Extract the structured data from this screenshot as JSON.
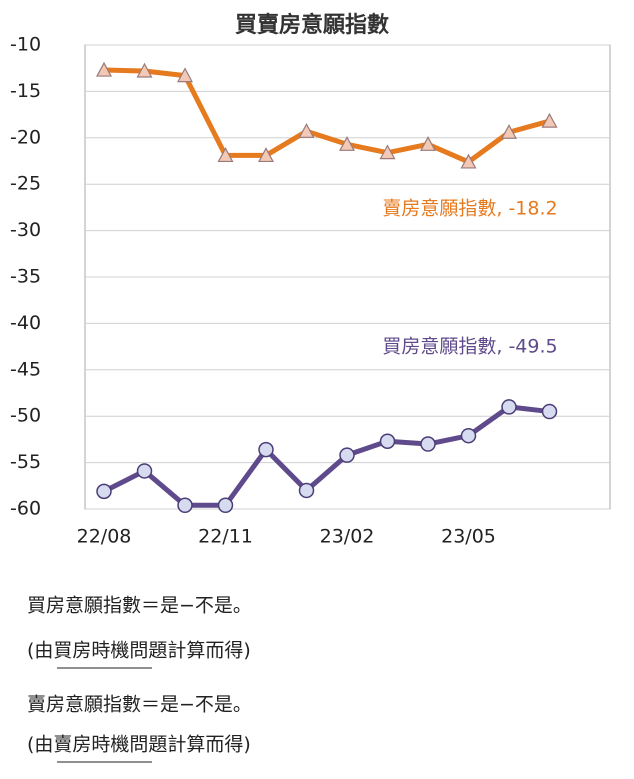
{
  "chart_data": {
    "type": "line",
    "title": "買賣房意願指數",
    "categories": [
      "22/08",
      null,
      null,
      "22/11",
      null,
      null,
      "23/02",
      null,
      null,
      "23/05",
      null,
      null
    ],
    "series": [
      {
        "name": "賣房意願指數",
        "color": "#e57a1f",
        "marker": "triangle",
        "values": [
          -12.7,
          -12.8,
          -13.3,
          -21.9,
          -21.9,
          -19.3,
          -20.7,
          -21.6,
          -20.7,
          -22.6,
          -19.4,
          -18.2
        ]
      },
      {
        "name": "買房意願指數",
        "color": "#5f4b8b",
        "marker": "circle",
        "values": [
          -58.1,
          -55.9,
          -59.6,
          -59.6,
          -53.6,
          -58.0,
          -54.2,
          -52.7,
          -53.0,
          -52.1,
          -49.0,
          -49.5
        ]
      }
    ],
    "annotations": [
      "賣房意願指數, -18.2",
      "買房意願指數, -49.5"
    ],
    "ylim": [
      -60,
      -10
    ],
    "yticks": [
      -60,
      -55,
      -50,
      -45,
      -40,
      -35,
      -30,
      -25,
      -20,
      -15,
      -10
    ],
    "grid": true
  },
  "notes": [
    {
      "formula": "買房意願指數＝是−不是。",
      "source": "(由買房時機問題計算而得)"
    },
    {
      "formula": "賣房意願指數＝是−不是。",
      "source": "(由賣房時機問題計算而得)"
    }
  ]
}
